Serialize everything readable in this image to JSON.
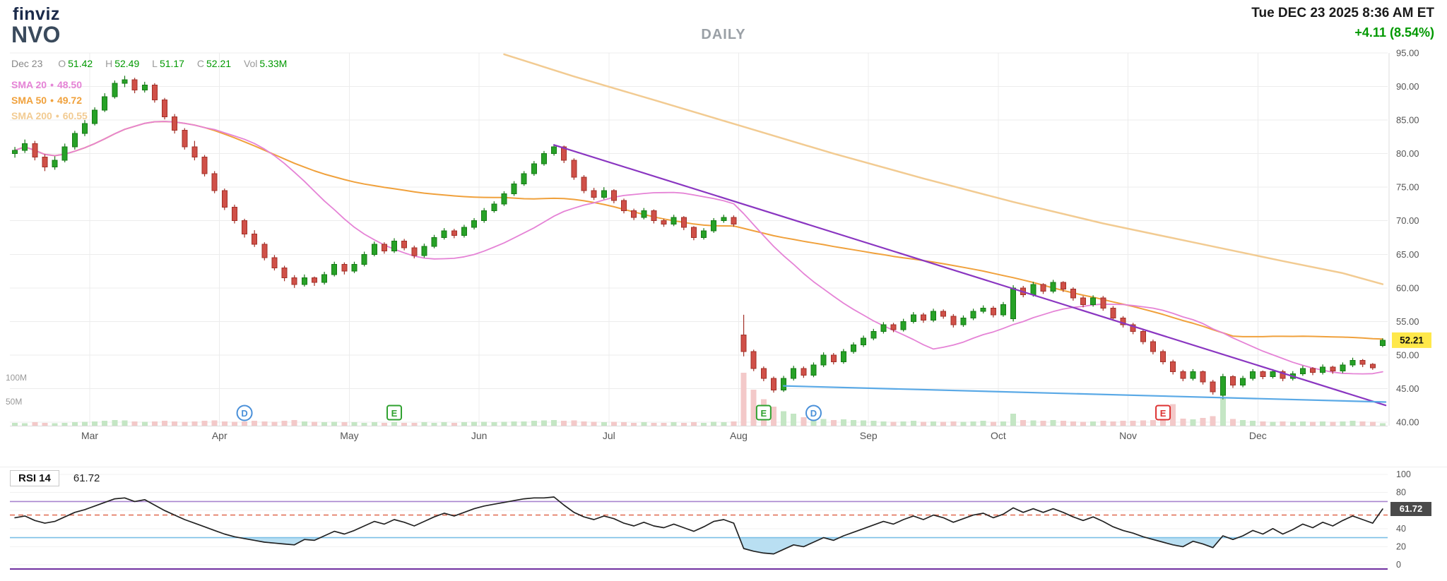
{
  "header": {
    "logo": "finviz",
    "ticker": "NVO",
    "timeframe": "DAILY",
    "datetime": "Tue DEC 23 2025 8:36 AM ET",
    "change": "+4.11 (8.54%)",
    "sma_sep": "•",
    "quote": {
      "date": "Dec 23",
      "labels": {
        "o": "O",
        "h": "H",
        "l": "L",
        "c": "C",
        "vol": "Vol"
      },
      "o": "51.42",
      "h": "52.49",
      "l": "51.17",
      "c": "52.21",
      "vol": "5.33M"
    },
    "sma_legend": [
      {
        "label": "SMA 20",
        "value": "48.50",
        "color": "#e583d6"
      },
      {
        "label": "SMA 50",
        "value": "49.72",
        "color": "#f0a13c"
      },
      {
        "label": "SMA 200",
        "value": "60.55",
        "color": "#f2cb92"
      }
    ]
  },
  "chart_data": {
    "type": "candlestick",
    "symbol": "NVO",
    "interval": "daily",
    "title": "NVO daily candlestick chart with SMA 20/50/200, volume, trendlines and RSI(14)",
    "y_axis": {
      "min": 40,
      "max": 95,
      "tick_step": 5,
      "labels": [
        "95.00",
        "90.00",
        "85.00",
        "80.00",
        "75.00",
        "70.00",
        "65.00",
        "60.00",
        "55.00",
        "50.00",
        "45.00",
        "40.00"
      ]
    },
    "months": [
      {
        "label": "Mar",
        "index": 8
      },
      {
        "label": "Apr",
        "index": 21
      },
      {
        "label": "May",
        "index": 34
      },
      {
        "label": "Jun",
        "index": 47
      },
      {
        "label": "Jul",
        "index": 60
      },
      {
        "label": "Aug",
        "index": 73
      },
      {
        "label": "Sep",
        "index": 86
      },
      {
        "label": "Oct",
        "index": 99
      },
      {
        "label": "Nov",
        "index": 112
      },
      {
        "label": "Dec",
        "index": 125
      }
    ],
    "candles": [
      [
        80.0,
        81.0,
        79.4,
        80.5
      ],
      [
        80.5,
        82.1,
        80.1,
        81.5
      ],
      [
        81.5,
        81.9,
        79.0,
        79.5
      ],
      [
        79.5,
        79.9,
        77.4,
        78.0
      ],
      [
        78.0,
        79.6,
        77.6,
        79.0
      ],
      [
        79.0,
        81.5,
        78.7,
        81.0
      ],
      [
        81.0,
        83.4,
        80.6,
        83.0
      ],
      [
        83.0,
        85.0,
        82.6,
        84.5
      ],
      [
        84.5,
        86.9,
        84.2,
        86.5
      ],
      [
        86.5,
        89.0,
        86.2,
        88.5
      ],
      [
        88.5,
        90.9,
        88.2,
        90.5
      ],
      [
        90.5,
        91.6,
        89.9,
        91.0
      ],
      [
        91.0,
        91.3,
        89.0,
        89.5
      ],
      [
        89.5,
        90.7,
        89.1,
        90.2
      ],
      [
        90.2,
        90.5,
        87.6,
        88.0
      ],
      [
        88.0,
        88.3,
        85.1,
        85.5
      ],
      [
        85.5,
        85.9,
        83.0,
        83.5
      ],
      [
        83.5,
        83.8,
        80.6,
        81.0
      ],
      [
        81.0,
        81.9,
        79.0,
        79.5
      ],
      [
        79.5,
        79.8,
        76.6,
        77.0
      ],
      [
        77.0,
        77.4,
        74.1,
        74.5
      ],
      [
        74.5,
        74.8,
        71.6,
        72.0
      ],
      [
        72.0,
        72.4,
        69.6,
        70.0
      ],
      [
        70.0,
        70.3,
        67.5,
        68.0
      ],
      [
        68.0,
        68.6,
        66.1,
        66.5
      ],
      [
        66.5,
        66.8,
        64.1,
        64.5
      ],
      [
        64.5,
        64.9,
        62.6,
        63.0
      ],
      [
        63.0,
        63.3,
        61.0,
        61.5
      ],
      [
        61.5,
        61.9,
        60.0,
        60.5
      ],
      [
        60.5,
        62.0,
        60.2,
        61.5
      ],
      [
        61.5,
        61.7,
        60.3,
        60.8
      ],
      [
        60.8,
        62.4,
        60.5,
        62.0
      ],
      [
        62.0,
        63.9,
        61.7,
        63.5
      ],
      [
        63.5,
        63.8,
        62.0,
        62.5
      ],
      [
        62.5,
        63.9,
        62.2,
        63.5
      ],
      [
        63.5,
        65.4,
        63.2,
        65.0
      ],
      [
        65.0,
        66.9,
        64.7,
        66.5
      ],
      [
        66.5,
        66.8,
        65.1,
        65.5
      ],
      [
        65.5,
        67.4,
        65.2,
        67.0
      ],
      [
        67.0,
        67.3,
        65.6,
        66.0
      ],
      [
        66.0,
        66.3,
        64.4,
        64.8
      ],
      [
        64.8,
        66.6,
        64.5,
        66.2
      ],
      [
        66.2,
        67.9,
        65.9,
        67.5
      ],
      [
        67.5,
        68.9,
        67.2,
        68.5
      ],
      [
        68.5,
        68.8,
        67.4,
        67.8
      ],
      [
        67.8,
        69.4,
        67.5,
        69.0
      ],
      [
        69.0,
        70.4,
        68.7,
        70.0
      ],
      [
        70.0,
        71.9,
        69.7,
        71.5
      ],
      [
        71.5,
        72.9,
        71.2,
        72.5
      ],
      [
        72.5,
        74.4,
        72.2,
        74.0
      ],
      [
        74.0,
        75.9,
        73.7,
        75.5
      ],
      [
        75.5,
        77.4,
        75.2,
        77.0
      ],
      [
        77.0,
        78.9,
        76.7,
        78.5
      ],
      [
        78.5,
        80.4,
        78.2,
        80.0
      ],
      [
        80.0,
        81.4,
        79.7,
        81.0
      ],
      [
        81.0,
        81.2,
        78.6,
        79.0
      ],
      [
        79.0,
        79.3,
        76.1,
        76.5
      ],
      [
        76.5,
        76.8,
        74.1,
        74.5
      ],
      [
        74.5,
        74.9,
        73.1,
        73.5
      ],
      [
        73.5,
        75.0,
        73.2,
        74.5
      ],
      [
        74.5,
        74.7,
        72.6,
        73.0
      ],
      [
        73.0,
        73.3,
        71.1,
        71.5
      ],
      [
        71.5,
        71.8,
        70.1,
        70.5
      ],
      [
        70.5,
        71.9,
        70.2,
        71.5
      ],
      [
        71.5,
        71.7,
        69.6,
        70.0
      ],
      [
        70.0,
        70.3,
        69.1,
        69.5
      ],
      [
        69.5,
        70.9,
        69.2,
        70.5
      ],
      [
        70.5,
        70.7,
        68.6,
        69.0
      ],
      [
        69.0,
        69.2,
        67.1,
        67.5
      ],
      [
        67.5,
        68.9,
        67.2,
        68.5
      ],
      [
        68.5,
        70.4,
        68.2,
        70.0
      ],
      [
        70.0,
        70.9,
        69.7,
        70.5
      ],
      [
        70.5,
        70.8,
        69.1,
        69.5
      ],
      [
        53.0,
        56.0,
        49.8,
        50.5
      ],
      [
        50.5,
        50.8,
        47.6,
        48.0
      ],
      [
        48.0,
        48.3,
        46.1,
        46.5
      ],
      [
        46.5,
        46.8,
        44.4,
        44.8
      ],
      [
        44.8,
        46.9,
        44.5,
        46.5
      ],
      [
        46.5,
        48.4,
        46.2,
        48.0
      ],
      [
        48.0,
        48.3,
        46.6,
        47.0
      ],
      [
        47.0,
        48.9,
        46.7,
        48.5
      ],
      [
        48.5,
        50.4,
        48.2,
        50.0
      ],
      [
        50.0,
        50.3,
        48.6,
        49.0
      ],
      [
        49.0,
        50.9,
        48.7,
        50.5
      ],
      [
        50.5,
        51.9,
        50.2,
        51.5
      ],
      [
        51.5,
        52.9,
        51.2,
        52.5
      ],
      [
        52.5,
        53.9,
        52.2,
        53.5
      ],
      [
        53.5,
        54.9,
        53.2,
        54.5
      ],
      [
        54.5,
        54.8,
        53.4,
        53.8
      ],
      [
        53.8,
        55.4,
        53.5,
        55.0
      ],
      [
        55.0,
        56.4,
        54.7,
        56.0
      ],
      [
        56.0,
        56.3,
        54.8,
        55.2
      ],
      [
        55.2,
        56.9,
        54.9,
        56.5
      ],
      [
        56.5,
        56.8,
        55.4,
        55.8
      ],
      [
        55.8,
        56.1,
        54.1,
        54.5
      ],
      [
        54.5,
        55.9,
        54.2,
        55.5
      ],
      [
        55.5,
        56.9,
        55.2,
        56.5
      ],
      [
        56.5,
        57.4,
        56.2,
        57.0
      ],
      [
        57.0,
        57.3,
        55.6,
        56.0
      ],
      [
        56.0,
        57.9,
        55.7,
        57.5
      ],
      [
        55.4,
        60.4,
        55.0,
        60.0
      ],
      [
        60.0,
        60.3,
        58.6,
        59.0
      ],
      [
        59.0,
        60.9,
        58.7,
        60.5
      ],
      [
        60.5,
        60.7,
        59.1,
        59.5
      ],
      [
        59.5,
        61.2,
        59.2,
        60.8
      ],
      [
        60.8,
        61.0,
        59.4,
        59.8
      ],
      [
        59.8,
        60.1,
        58.1,
        58.5
      ],
      [
        58.5,
        58.8,
        57.1,
        57.5
      ],
      [
        57.5,
        58.9,
        57.2,
        58.5
      ],
      [
        58.5,
        58.8,
        56.6,
        57.0
      ],
      [
        57.0,
        57.3,
        55.1,
        55.5
      ],
      [
        55.5,
        55.8,
        54.1,
        54.5
      ],
      [
        54.5,
        54.8,
        53.1,
        53.5
      ],
      [
        53.5,
        53.8,
        51.6,
        52.0
      ],
      [
        52.0,
        52.3,
        50.1,
        50.5
      ],
      [
        50.5,
        50.8,
        48.6,
        49.0
      ],
      [
        49.0,
        49.3,
        47.1,
        47.5
      ],
      [
        47.5,
        47.8,
        46.1,
        46.5
      ],
      [
        46.5,
        47.9,
        46.2,
        47.5
      ],
      [
        47.5,
        47.7,
        45.6,
        46.0
      ],
      [
        46.0,
        46.3,
        44.1,
        44.5
      ],
      [
        44.0,
        47.2,
        43.4,
        46.8
      ],
      [
        46.8,
        47.0,
        45.1,
        45.5
      ],
      [
        45.5,
        46.9,
        45.2,
        46.5
      ],
      [
        46.5,
        47.9,
        46.2,
        47.5
      ],
      [
        47.5,
        47.7,
        46.4,
        46.8
      ],
      [
        46.8,
        47.9,
        46.5,
        47.5
      ],
      [
        47.5,
        47.8,
        46.1,
        46.5
      ],
      [
        46.5,
        47.6,
        46.2,
        47.2
      ],
      [
        47.2,
        48.4,
        46.9,
        48.0
      ],
      [
        48.0,
        48.2,
        47.0,
        47.4
      ],
      [
        47.4,
        48.6,
        47.1,
        48.2
      ],
      [
        48.2,
        48.4,
        47.2,
        47.6
      ],
      [
        47.6,
        48.9,
        47.3,
        48.5
      ],
      [
        48.5,
        49.6,
        48.2,
        49.2
      ],
      [
        49.2,
        49.4,
        48.2,
        48.6
      ],
      [
        48.6,
        48.8,
        47.8,
        48.1
      ],
      [
        51.42,
        52.49,
        51.17,
        52.21
      ]
    ],
    "volumes_millions": [
      6,
      5,
      7,
      6,
      5,
      6,
      7,
      8,
      9,
      10,
      12,
      11,
      9,
      8,
      9,
      10,
      9,
      8,
      9,
      10,
      11,
      9,
      8,
      9,
      10,
      9,
      8,
      10,
      12,
      9,
      8,
      7,
      8,
      7,
      7,
      6,
      7,
      6,
      7,
      6,
      6,
      7,
      6,
      7,
      6,
      7,
      8,
      8,
      7,
      8,
      9,
      9,
      10,
      11,
      12,
      10,
      11,
      9,
      8,
      7,
      8,
      7,
      6,
      7,
      6,
      6,
      7,
      6,
      7,
      6,
      8,
      7,
      9,
      110,
      75,
      55,
      40,
      30,
      25,
      18,
      15,
      14,
      12,
      13,
      12,
      11,
      10,
      9,
      8,
      9,
      10,
      8,
      9,
      8,
      9,
      8,
      9,
      10,
      8,
      9,
      25,
      12,
      11,
      10,
      12,
      10,
      9,
      8,
      9,
      10,
      9,
      10,
      10,
      11,
      12,
      11,
      45,
      15,
      13,
      16,
      20,
      58,
      14,
      12,
      10,
      9,
      8,
      9,
      8,
      9,
      8,
      9,
      8,
      9,
      10,
      9,
      8,
      5.33
    ],
    "volume_labels": [
      {
        "text": "100M",
        "value": 100
      },
      {
        "text": "50M",
        "value": 50
      }
    ],
    "sma200_keypoints": [
      [
        49,
        94.8
      ],
      [
        56,
        91.5
      ],
      [
        64,
        88.0
      ],
      [
        73,
        84.0
      ],
      [
        82,
        80.0
      ],
      [
        91,
        76.3
      ],
      [
        100,
        72.8
      ],
      [
        109,
        69.6
      ],
      [
        118,
        66.8
      ],
      [
        127,
        64.0
      ],
      [
        133,
        62.2
      ],
      [
        137,
        60.55
      ]
    ],
    "trendlines": [
      {
        "name": "downtrend-line",
        "color": "#8a36c1",
        "from": [
          54,
          81.3
        ],
        "to": [
          137.3,
          42.5
        ]
      },
      {
        "name": "support-line",
        "color": "#5aa9e6",
        "from": [
          77,
          45.4
        ],
        "to": [
          137.3,
          43.0
        ]
      }
    ],
    "markers": [
      {
        "label": "D",
        "shape": "circle",
        "color": "#4a90d9",
        "index": 23,
        "type": "dividend"
      },
      {
        "label": "E",
        "shape": "square",
        "color": "#2fa12f",
        "index": 38,
        "type": "earnings"
      },
      {
        "label": "E",
        "shape": "square",
        "color": "#2fa12f",
        "index": 75,
        "type": "earnings"
      },
      {
        "label": "D",
        "shape": "circle",
        "color": "#4a90d9",
        "index": 80,
        "type": "dividend"
      },
      {
        "label": "E",
        "shape": "square",
        "color": "#dd3333",
        "index": 115,
        "type": "earnings"
      }
    ],
    "last_price": "52.21",
    "rsi": {
      "label": "RSI 14",
      "value": "61.72",
      "axis": {
        "labels": [
          "100",
          "80",
          "60",
          "40",
          "20",
          "0"
        ],
        "values": [
          100,
          80,
          60,
          40,
          20,
          0
        ]
      },
      "lines": [
        {
          "value": 70,
          "color": "#a884cf",
          "dash": false
        },
        {
          "value": 55,
          "color": "#e2735a",
          "dash": true
        },
        {
          "value": 30,
          "color": "#7bbfe6",
          "dash": false
        }
      ],
      "fill_below": 30,
      "fill_color": "#b9dff2",
      "values": [
        52,
        54,
        49,
        46,
        48,
        53,
        58,
        61,
        65,
        69,
        73,
        74,
        70,
        72,
        66,
        60,
        55,
        50,
        46,
        42,
        38,
        34,
        31,
        29,
        27,
        25,
        24,
        23,
        22,
        28,
        27,
        32,
        37,
        34,
        38,
        43,
        48,
        45,
        50,
        47,
        43,
        48,
        53,
        57,
        54,
        58,
        62,
        65,
        67,
        69,
        71,
        73,
        74,
        74,
        75,
        66,
        58,
        53,
        50,
        54,
        51,
        46,
        43,
        47,
        43,
        41,
        45,
        41,
        37,
        42,
        48,
        50,
        46,
        18,
        15,
        13,
        12,
        17,
        22,
        20,
        25,
        30,
        27,
        32,
        36,
        40,
        44,
        48,
        45,
        50,
        54,
        50,
        55,
        52,
        47,
        51,
        55,
        57,
        52,
        56,
        63,
        58,
        62,
        58,
        62,
        58,
        53,
        49,
        53,
        48,
        42,
        38,
        35,
        31,
        28,
        25,
        22,
        20,
        26,
        23,
        19,
        32,
        28,
        32,
        38,
        34,
        40,
        34,
        39,
        45,
        41,
        47,
        43,
        49,
        54,
        50,
        46,
        61.72
      ]
    }
  },
  "colors": {
    "up": "#27a227",
    "up_border": "#157a15",
    "down": "#d05048",
    "down_border": "#a23028",
    "volume_up": "#c4e6c4",
    "volume_down": "#f3c9c9",
    "grid": "#ececec",
    "axis_line": "#dcdcdc",
    "axis_text": "#555555",
    "month_text": "#555555",
    "volume_text": "#999999",
    "price_badge_bg": "#ffe84a",
    "price_badge_text": "#111111",
    "rsi_line": "#222222",
    "rsi_badge_bg": "#4a4a4a",
    "rsi_badge_text": "#ffffff",
    "panel_divider": "#7030a0",
    "positive": "#009900"
  }
}
